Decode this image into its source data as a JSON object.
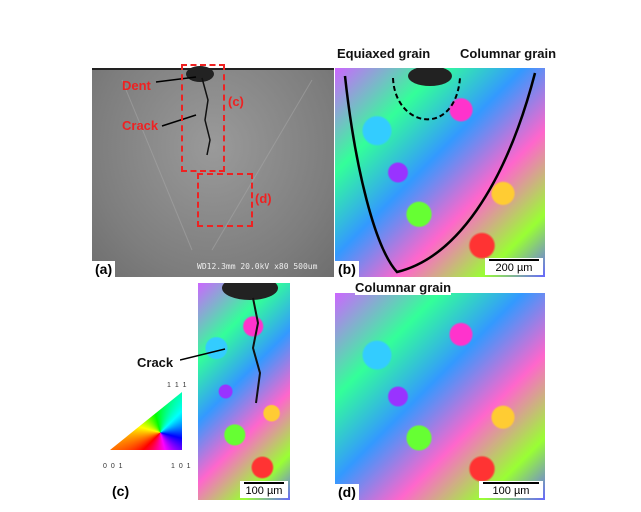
{
  "panel_a": {
    "label": "(a)",
    "dent": "Dent",
    "crack": "Crack",
    "box_c": "(c)",
    "box_d": "(d)",
    "sem_info": "WD12.3mm 20.0kV x80   500um"
  },
  "panel_b": {
    "label": "(b)",
    "equiaxed": "Equiaxed grain",
    "columnar": "Columnar grain",
    "scale": "200 µm"
  },
  "panel_c": {
    "label": "(c)",
    "crack": "Crack",
    "scale": "100 µm"
  },
  "panel_d": {
    "label": "(d)",
    "columnar": "Columnar grain",
    "scale": "100 µm"
  },
  "ipf": {
    "top": "1 1 1",
    "left": "0 0 1",
    "right": "1 0 1"
  },
  "colors": {
    "annotation_red": "#e22222"
  }
}
